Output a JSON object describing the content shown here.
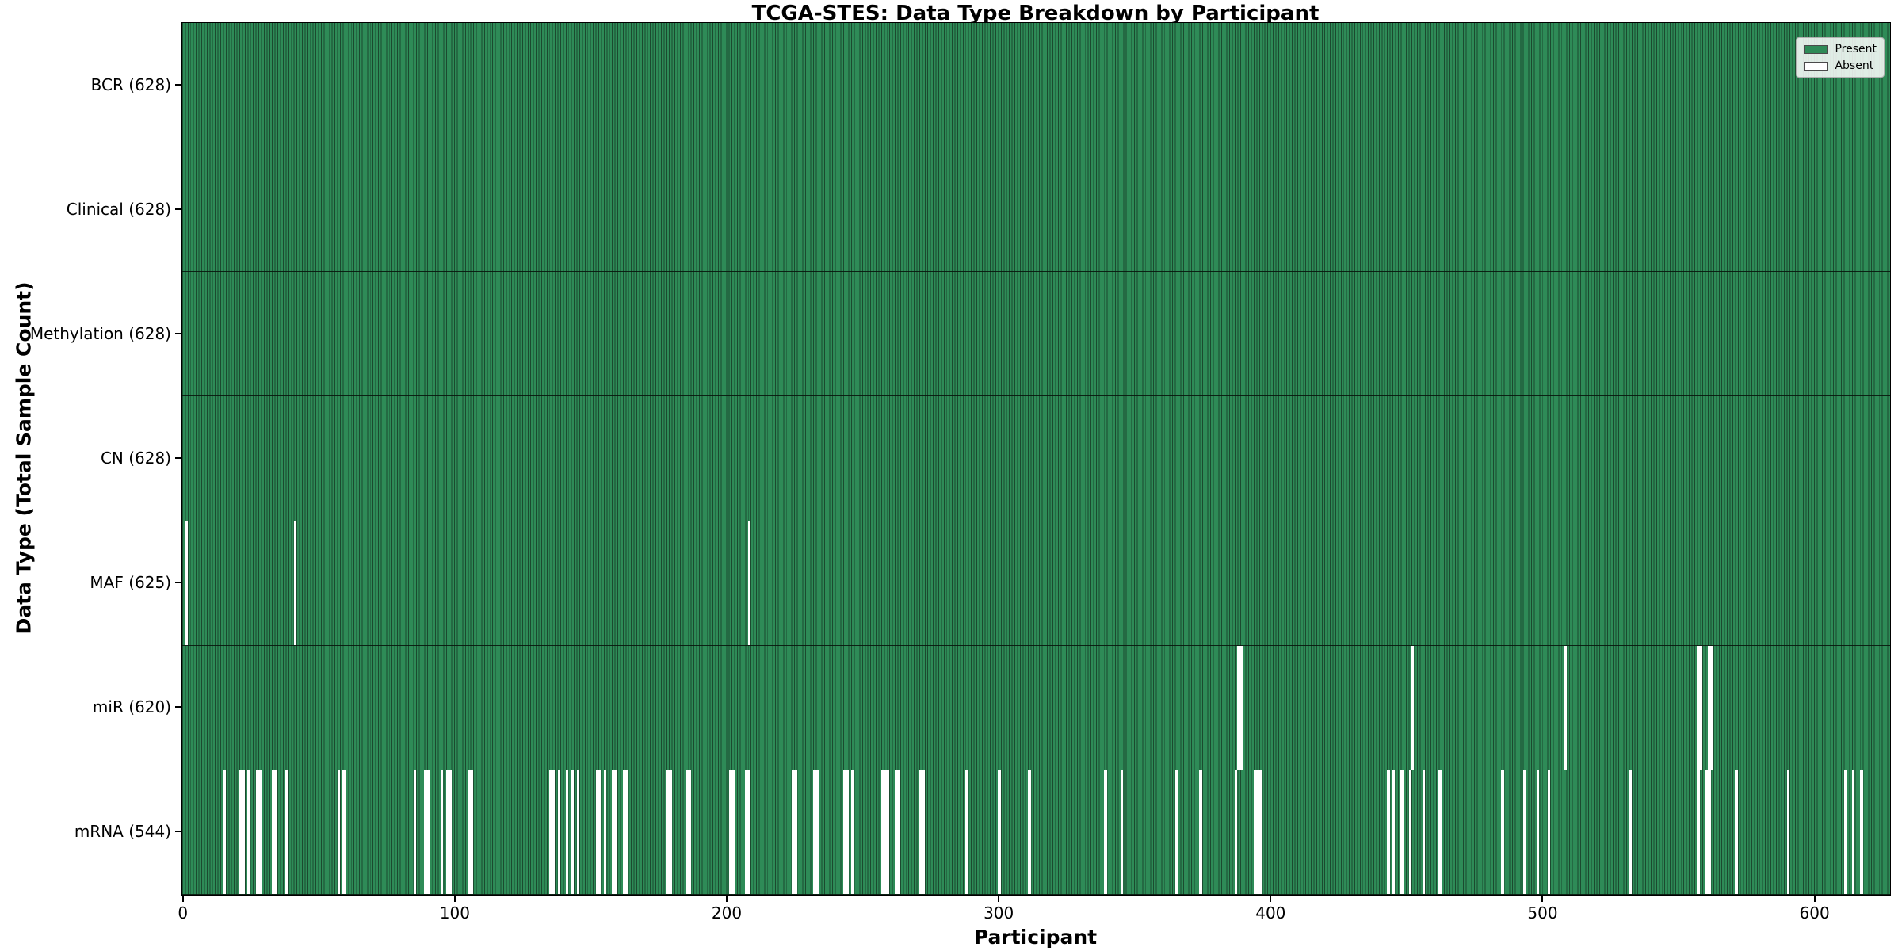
{
  "chart_data": {
    "type": "heatmap",
    "title": "TCGA-STES: Data Type Breakdown by Participant",
    "xlabel": "Participant",
    "ylabel": "Data Type (Total Sample Count)",
    "n_participants": 628,
    "x_range": [
      0,
      627
    ],
    "x_ticks": [
      0,
      100,
      200,
      300,
      400,
      500,
      600
    ],
    "grid": false,
    "legend_position": "upper right",
    "encoding": "green cell = data type present for participant; white cell = absent",
    "colors": {
      "present": "#2e8b57",
      "absent": "#ffffff",
      "bar_edge": "#1b4a2f",
      "row_boundary": "#0a140d",
      "legend_border": "#b0b0b0"
    },
    "legend": [
      {
        "label": "Present",
        "color": "#2e8b57"
      },
      {
        "label": "Absent",
        "color": "#ffffff"
      }
    ],
    "rows": [
      {
        "data_type": "BCR",
        "total": 628,
        "tick_label": "BCR (628)",
        "absent_participants": []
      },
      {
        "data_type": "Clinical",
        "total": 628,
        "tick_label": "Clinical (628)",
        "absent_participants": []
      },
      {
        "data_type": "Methylation",
        "total": 628,
        "tick_label": "Methylation (628)",
        "absent_participants": []
      },
      {
        "data_type": "CN",
        "total": 628,
        "tick_label": "CN (628)",
        "absent_participants": []
      },
      {
        "data_type": "MAF",
        "total": 625,
        "tick_label": "MAF (625)",
        "absent_participants": [
          1,
          41,
          208
        ]
      },
      {
        "data_type": "miR",
        "total": 620,
        "tick_label": "miR (620)",
        "absent_participants": [
          388,
          389,
          452,
          508,
          557,
          558,
          561,
          562
        ]
      },
      {
        "data_type": "mRNA",
        "total": 544,
        "tick_label": "mRNA (544)",
        "absent_participants": [
          15,
          21,
          22,
          24,
          27,
          28,
          33,
          34,
          38,
          57,
          59,
          85,
          89,
          90,
          95,
          97,
          98,
          105,
          106,
          135,
          136,
          138,
          141,
          143,
          145,
          152,
          153,
          155,
          158,
          159,
          162,
          163,
          178,
          179,
          185,
          186,
          201,
          202,
          207,
          208,
          224,
          225,
          232,
          233,
          243,
          244,
          246,
          257,
          258,
          259,
          262,
          263,
          271,
          272,
          288,
          300,
          311,
          339,
          345,
          365,
          374,
          387,
          394,
          395,
          396,
          443,
          445,
          448,
          451,
          456,
          462,
          485,
          493,
          498,
          502,
          532,
          557,
          560,
          561,
          571,
          590,
          611,
          614,
          617
        ]
      }
    ]
  }
}
